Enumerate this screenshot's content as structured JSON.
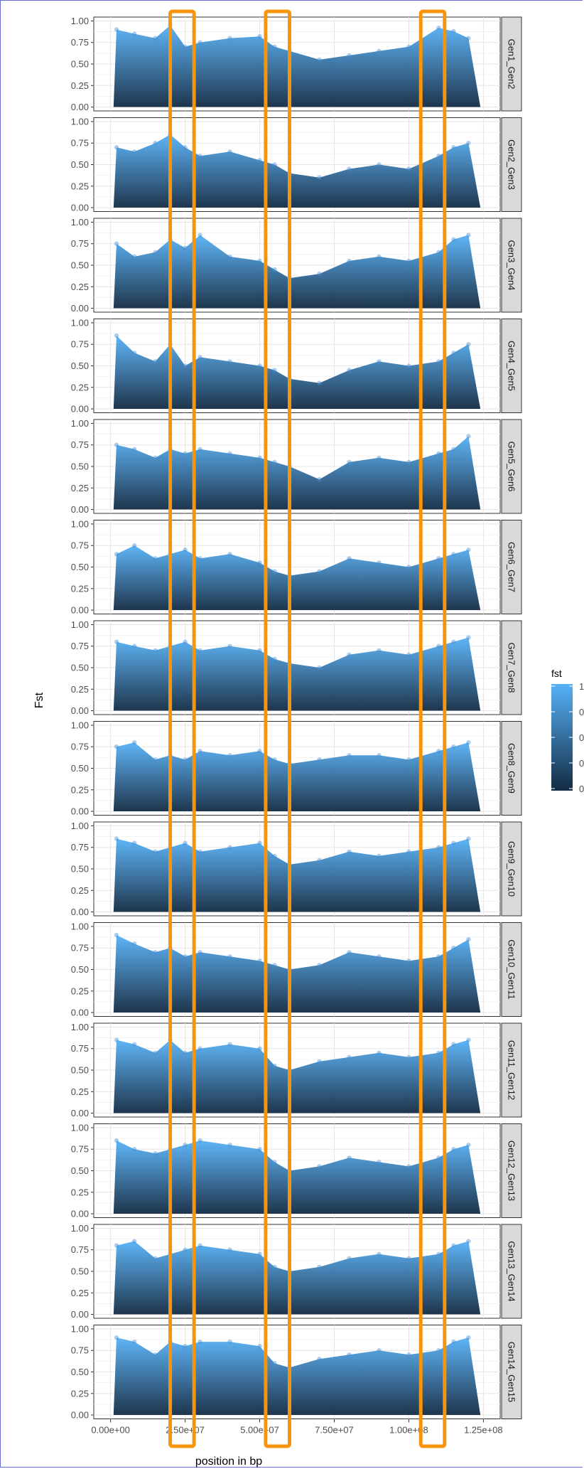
{
  "chart_data": {
    "type": "scatter",
    "xlabel": "position in bp",
    "ylabel": "Fst",
    "xlim": [
      0,
      125000000
    ],
    "ylim": [
      0,
      1
    ],
    "x_ticks": [
      0,
      25000000,
      50000000,
      75000000,
      100000000,
      125000000
    ],
    "x_tick_labels": [
      "0.00e+00",
      "2.50e+07",
      "5.00e+07",
      "7.50e+07",
      "1.00e+08",
      "1.25e+08"
    ],
    "y_ticks": [
      0,
      0.25,
      0.5,
      0.75,
      1
    ],
    "y_tick_labels": [
      "0.00",
      "0.25",
      "0.50",
      "0.75",
      "1.00"
    ],
    "grid": true,
    "legend": {
      "title": "fst",
      "placement": "right",
      "type": "colorbar",
      "low_color": "#132b43",
      "high_color": "#56b1f7",
      "tick_labels": [
        "1",
        "0",
        "0",
        "0",
        "0"
      ]
    },
    "panels": [
      {
        "label": "Gen1_Gen2",
        "x": [
          2000000.0,
          8000000.0,
          15000000.0,
          20000000.0,
          25000000.0,
          30000000.0,
          40000000.0,
          50000000.0,
          55000000.0,
          60000000.0,
          70000000.0,
          80000000.0,
          90000000.0,
          100000000.0,
          110000000.0,
          115000000.0,
          120000000.0
        ],
        "y": [
          0.9,
          0.85,
          0.8,
          0.95,
          0.7,
          0.75,
          0.8,
          0.82,
          0.7,
          0.65,
          0.55,
          0.6,
          0.65,
          0.7,
          0.92,
          0.88,
          0.8
        ]
      },
      {
        "label": "Gen2_Gen3",
        "x": [
          2000000.0,
          8000000.0,
          15000000.0,
          20000000.0,
          25000000.0,
          30000000.0,
          40000000.0,
          50000000.0,
          55000000.0,
          60000000.0,
          70000000.0,
          80000000.0,
          90000000.0,
          100000000.0,
          110000000.0,
          115000000.0,
          120000000.0
        ],
        "y": [
          0.7,
          0.65,
          0.75,
          0.85,
          0.7,
          0.6,
          0.65,
          0.55,
          0.5,
          0.4,
          0.35,
          0.45,
          0.5,
          0.45,
          0.6,
          0.7,
          0.75
        ]
      },
      {
        "label": "Gen3_Gen4",
        "x": [
          2000000.0,
          8000000.0,
          15000000.0,
          20000000.0,
          25000000.0,
          30000000.0,
          40000000.0,
          50000000.0,
          55000000.0,
          60000000.0,
          70000000.0,
          80000000.0,
          90000000.0,
          100000000.0,
          110000000.0,
          115000000.0,
          120000000.0
        ],
        "y": [
          0.75,
          0.6,
          0.65,
          0.8,
          0.7,
          0.85,
          0.6,
          0.55,
          0.45,
          0.35,
          0.4,
          0.55,
          0.6,
          0.55,
          0.65,
          0.8,
          0.85
        ]
      },
      {
        "label": "Gen4_Gen5",
        "x": [
          2000000.0,
          8000000.0,
          15000000.0,
          20000000.0,
          25000000.0,
          30000000.0,
          40000000.0,
          50000000.0,
          55000000.0,
          60000000.0,
          70000000.0,
          80000000.0,
          90000000.0,
          100000000.0,
          110000000.0,
          115000000.0,
          120000000.0
        ],
        "y": [
          0.85,
          0.65,
          0.55,
          0.75,
          0.5,
          0.6,
          0.55,
          0.5,
          0.45,
          0.35,
          0.3,
          0.45,
          0.55,
          0.5,
          0.55,
          0.65,
          0.75
        ]
      },
      {
        "label": "Gen5_Gen6",
        "x": [
          2000000.0,
          8000000.0,
          15000000.0,
          20000000.0,
          25000000.0,
          30000000.0,
          40000000.0,
          50000000.0,
          55000000.0,
          60000000.0,
          70000000.0,
          80000000.0,
          90000000.0,
          100000000.0,
          110000000.0,
          115000000.0,
          120000000.0
        ],
        "y": [
          0.75,
          0.7,
          0.6,
          0.7,
          0.65,
          0.7,
          0.65,
          0.6,
          0.55,
          0.5,
          0.35,
          0.55,
          0.6,
          0.55,
          0.65,
          0.7,
          0.85
        ]
      },
      {
        "label": "Gen6_Gen7",
        "x": [
          2000000.0,
          8000000.0,
          15000000.0,
          20000000.0,
          25000000.0,
          30000000.0,
          40000000.0,
          50000000.0,
          55000000.0,
          60000000.0,
          70000000.0,
          80000000.0,
          90000000.0,
          100000000.0,
          110000000.0,
          115000000.0,
          120000000.0
        ],
        "y": [
          0.65,
          0.75,
          0.6,
          0.65,
          0.7,
          0.6,
          0.65,
          0.55,
          0.45,
          0.4,
          0.45,
          0.6,
          0.55,
          0.5,
          0.6,
          0.65,
          0.7
        ]
      },
      {
        "label": "Gen7_Gen8",
        "x": [
          2000000.0,
          8000000.0,
          15000000.0,
          20000000.0,
          25000000.0,
          30000000.0,
          40000000.0,
          50000000.0,
          55000000.0,
          60000000.0,
          70000000.0,
          80000000.0,
          90000000.0,
          100000000.0,
          110000000.0,
          115000000.0,
          120000000.0
        ],
        "y": [
          0.8,
          0.75,
          0.7,
          0.75,
          0.8,
          0.7,
          0.75,
          0.7,
          0.6,
          0.55,
          0.5,
          0.65,
          0.7,
          0.65,
          0.75,
          0.8,
          0.85
        ]
      },
      {
        "label": "Gen8_Gen9",
        "x": [
          2000000.0,
          8000000.0,
          15000000.0,
          20000000.0,
          25000000.0,
          30000000.0,
          40000000.0,
          50000000.0,
          55000000.0,
          60000000.0,
          70000000.0,
          80000000.0,
          90000000.0,
          100000000.0,
          110000000.0,
          115000000.0,
          120000000.0
        ],
        "y": [
          0.75,
          0.8,
          0.6,
          0.65,
          0.6,
          0.7,
          0.65,
          0.7,
          0.6,
          0.55,
          0.6,
          0.65,
          0.65,
          0.6,
          0.7,
          0.75,
          0.8
        ]
      },
      {
        "label": "Gen9_Gen10",
        "x": [
          2000000.0,
          8000000.0,
          15000000.0,
          20000000.0,
          25000000.0,
          30000000.0,
          40000000.0,
          50000000.0,
          55000000.0,
          60000000.0,
          70000000.0,
          80000000.0,
          90000000.0,
          100000000.0,
          110000000.0,
          115000000.0,
          120000000.0
        ],
        "y": [
          0.85,
          0.8,
          0.7,
          0.75,
          0.8,
          0.7,
          0.75,
          0.8,
          0.65,
          0.55,
          0.6,
          0.7,
          0.65,
          0.7,
          0.75,
          0.8,
          0.85
        ]
      },
      {
        "label": "Gen10_Gen11",
        "x": [
          2000000.0,
          8000000.0,
          15000000.0,
          20000000.0,
          25000000.0,
          30000000.0,
          40000000.0,
          50000000.0,
          55000000.0,
          60000000.0,
          70000000.0,
          80000000.0,
          90000000.0,
          100000000.0,
          110000000.0,
          115000000.0,
          120000000.0
        ],
        "y": [
          0.9,
          0.8,
          0.7,
          0.75,
          0.65,
          0.7,
          0.65,
          0.6,
          0.55,
          0.5,
          0.55,
          0.7,
          0.65,
          0.6,
          0.65,
          0.75,
          0.85
        ]
      },
      {
        "label": "Gen11_Gen12",
        "x": [
          2000000.0,
          8000000.0,
          15000000.0,
          20000000.0,
          25000000.0,
          30000000.0,
          40000000.0,
          50000000.0,
          55000000.0,
          60000000.0,
          70000000.0,
          80000000.0,
          90000000.0,
          100000000.0,
          110000000.0,
          115000000.0,
          120000000.0
        ],
        "y": [
          0.85,
          0.8,
          0.7,
          0.85,
          0.7,
          0.75,
          0.8,
          0.75,
          0.55,
          0.5,
          0.6,
          0.65,
          0.7,
          0.65,
          0.7,
          0.8,
          0.85
        ]
      },
      {
        "label": "Gen12_Gen13",
        "x": [
          2000000.0,
          8000000.0,
          15000000.0,
          20000000.0,
          25000000.0,
          30000000.0,
          40000000.0,
          50000000.0,
          55000000.0,
          60000000.0,
          70000000.0,
          80000000.0,
          90000000.0,
          100000000.0,
          110000000.0,
          115000000.0,
          120000000.0
        ],
        "y": [
          0.85,
          0.75,
          0.7,
          0.75,
          0.8,
          0.85,
          0.8,
          0.75,
          0.6,
          0.5,
          0.55,
          0.65,
          0.6,
          0.55,
          0.65,
          0.75,
          0.8
        ]
      },
      {
        "label": "Gen13_Gen14",
        "x": [
          2000000.0,
          8000000.0,
          15000000.0,
          20000000.0,
          25000000.0,
          30000000.0,
          40000000.0,
          50000000.0,
          55000000.0,
          60000000.0,
          70000000.0,
          80000000.0,
          90000000.0,
          100000000.0,
          110000000.0,
          115000000.0,
          120000000.0
        ],
        "y": [
          0.8,
          0.85,
          0.65,
          0.7,
          0.75,
          0.8,
          0.75,
          0.7,
          0.55,
          0.5,
          0.55,
          0.65,
          0.7,
          0.65,
          0.7,
          0.8,
          0.85
        ]
      },
      {
        "label": "Gen14_Gen15",
        "x": [
          2000000.0,
          8000000.0,
          15000000.0,
          20000000.0,
          25000000.0,
          30000000.0,
          40000000.0,
          50000000.0,
          55000000.0,
          60000000.0,
          70000000.0,
          80000000.0,
          90000000.0,
          100000000.0,
          110000000.0,
          115000000.0,
          120000000.0
        ],
        "y": [
          0.9,
          0.85,
          0.7,
          0.85,
          0.8,
          0.85,
          0.85,
          0.8,
          0.6,
          0.55,
          0.65,
          0.7,
          0.75,
          0.7,
          0.75,
          0.85,
          0.9
        ]
      }
    ],
    "highlight_windows_bp": [
      [
        20000000,
        28000000
      ],
      [
        52000000,
        60000000
      ],
      [
        104000000,
        112000000
      ]
    ],
    "highlight_color": "#f6950c"
  }
}
